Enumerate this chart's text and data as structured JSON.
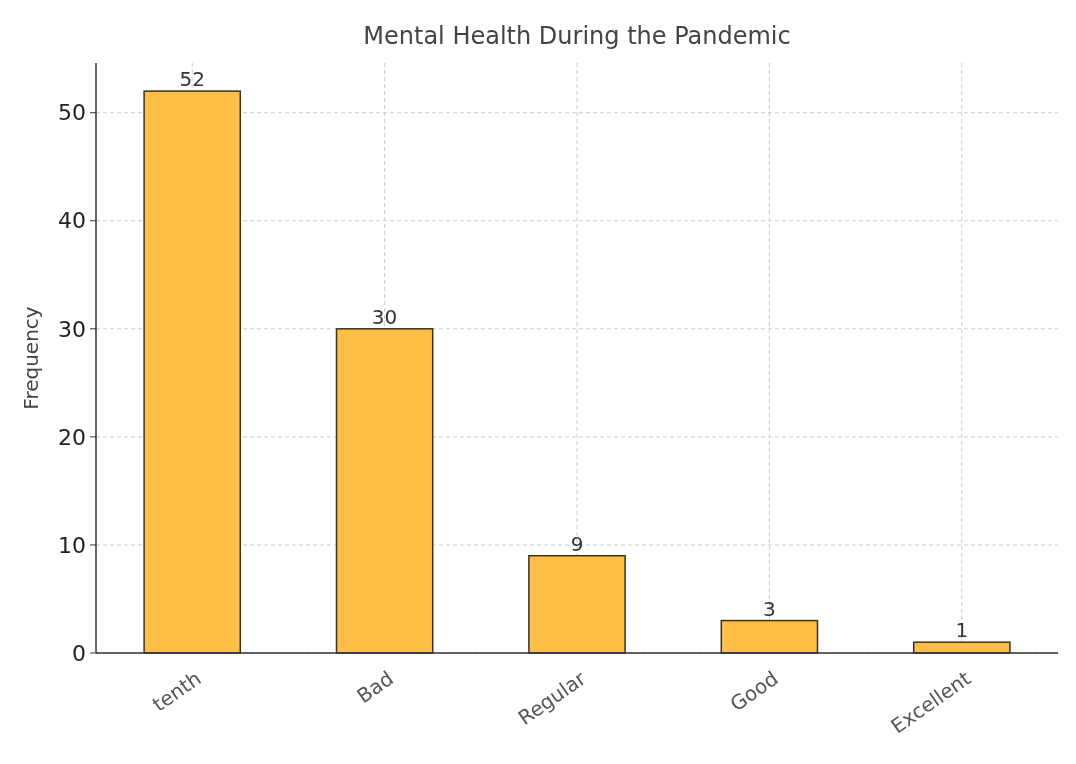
{
  "chart_data": {
    "type": "bar",
    "title": "Mental Health During the Pandemic",
    "ylabel": "Frequency",
    "categories": [
      "tenth",
      "Bad",
      "Regular",
      "Good",
      "Excellent"
    ],
    "values": [
      52,
      30,
      9,
      3,
      1
    ],
    "color": "#ffbf47",
    "ylim": [
      0,
      54.6
    ],
    "yticks": [
      0,
      10,
      20,
      30,
      40,
      50
    ],
    "grid": true,
    "data_labels": true
  }
}
